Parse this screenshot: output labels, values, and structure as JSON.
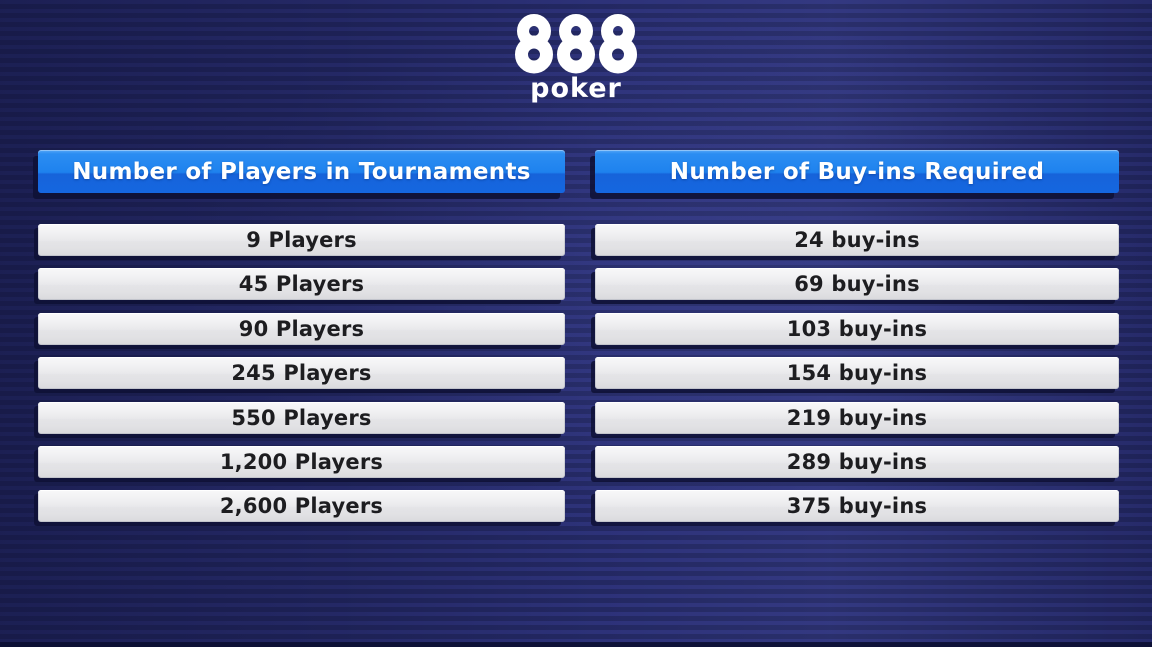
{
  "logo": {
    "brand_number": "888",
    "brand_word": "poker"
  },
  "chart_data": {
    "type": "table",
    "columns": [
      "Number of Players in Tournaments",
      "Number of Buy-ins Required"
    ],
    "rows": [
      [
        "9 Players",
        "24 buy-ins"
      ],
      [
        "45 Players",
        "69 buy-ins"
      ],
      [
        "90 Players",
        "103 buy-ins"
      ],
      [
        "245 Players",
        "154 buy-ins"
      ],
      [
        "550 Players",
        "219 buy-ins"
      ],
      [
        "1,200 Players",
        "289 buy-ins"
      ],
      [
        "2,600 Players",
        "375 buy-ins"
      ]
    ],
    "players_numeric": [
      9,
      45,
      90,
      245,
      550,
      1200,
      2600
    ],
    "buy_ins_numeric": [
      24,
      69,
      103,
      154,
      219,
      289,
      375
    ],
    "legend_position": "none",
    "grid": false
  },
  "colors": {
    "background_navy": "#232864",
    "background_stripe": "#2d3279",
    "header_blue_top": "#1e82ee",
    "header_blue_bottom": "#1567e0",
    "row_bar_gray": "#e7e7ea",
    "row_text": "#1d1d20",
    "header_text": "#ffffff",
    "logo_white": "#ffffff",
    "shadow_navy": "#0e1135"
  }
}
